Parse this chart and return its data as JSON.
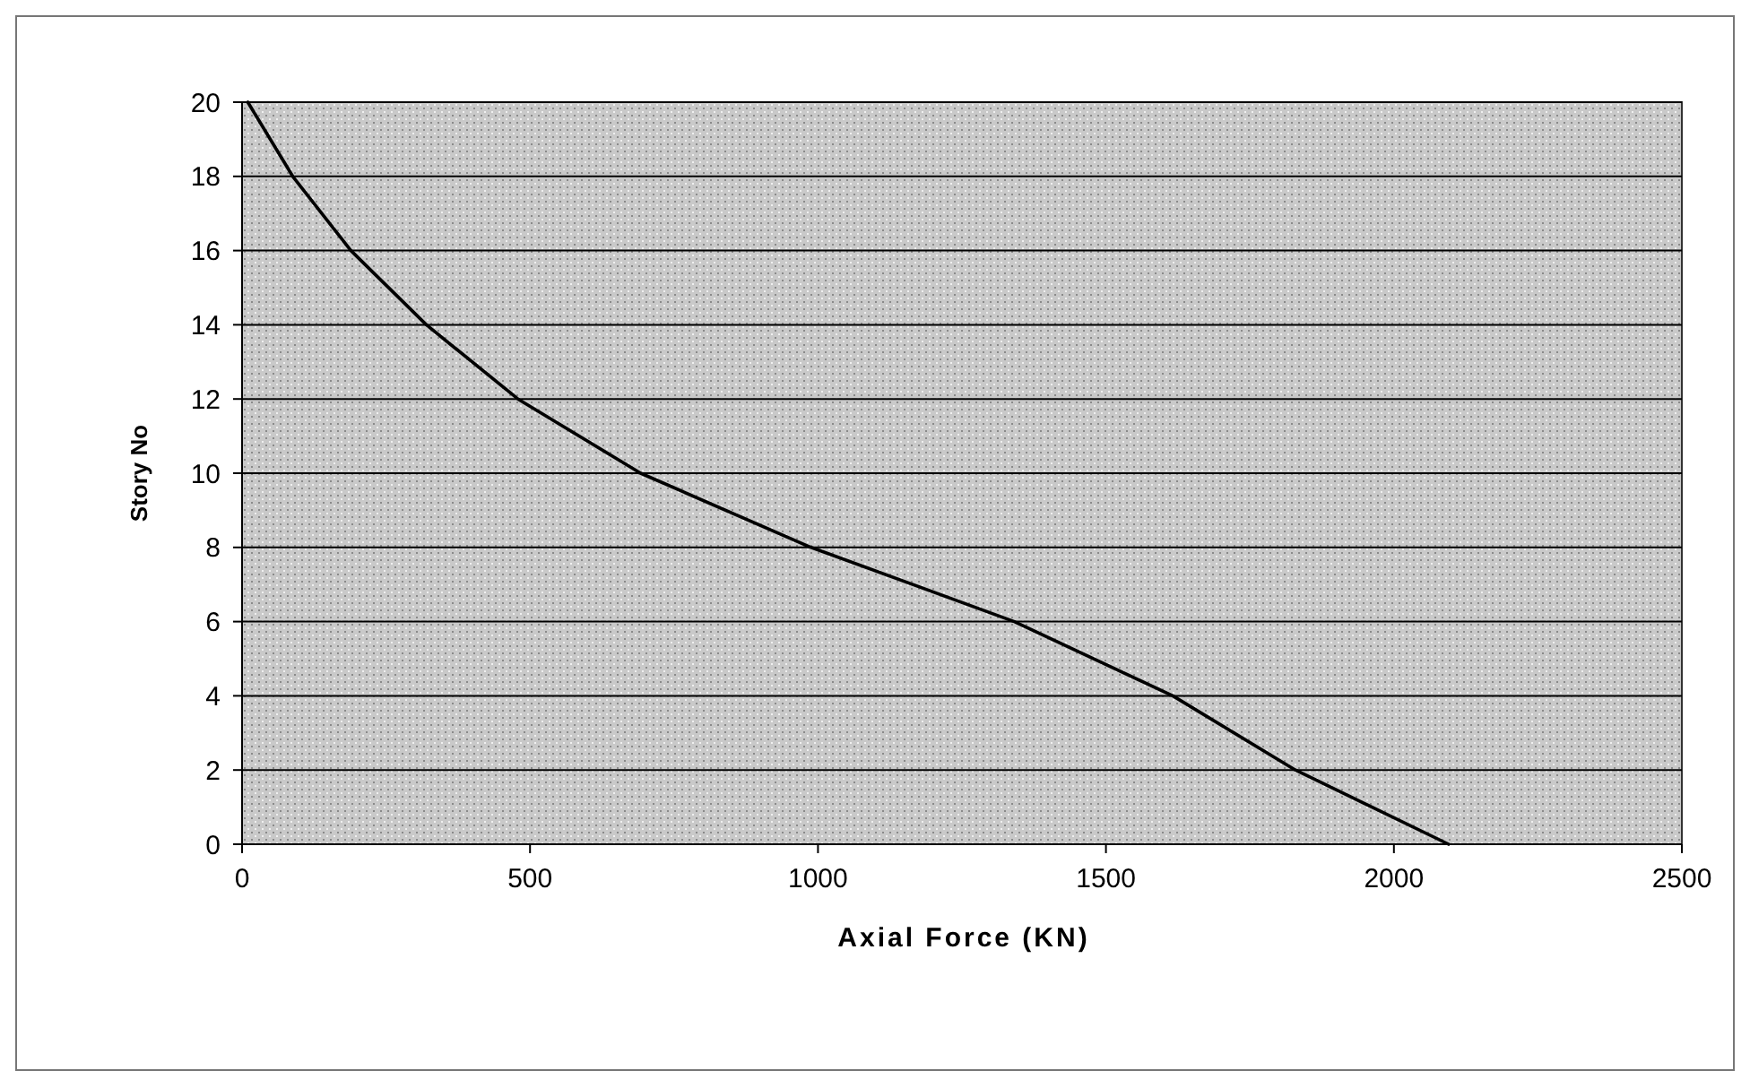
{
  "chart_data": {
    "type": "line",
    "xlabel": "Axial Force (KN)",
    "ylabel": "Story No",
    "x": [
      10,
      88,
      189,
      320,
      479,
      692,
      988,
      1341,
      1616,
      1829,
      2095
    ],
    "series": [
      {
        "color": "#000000",
        "values": [
          20,
          18,
          16,
          14,
          12,
          10,
          8,
          6,
          4,
          2,
          0
        ]
      }
    ],
    "xlim": [
      0,
      2500
    ],
    "xticks": [
      0,
      500,
      1000,
      1500,
      2000,
      2500
    ],
    "ylim": [
      0,
      20
    ],
    "yticks": [
      0,
      2,
      4,
      6,
      8,
      10,
      12,
      14,
      16,
      18,
      20
    ],
    "grid": "y",
    "marker": "none",
    "line_style": "solid"
  }
}
